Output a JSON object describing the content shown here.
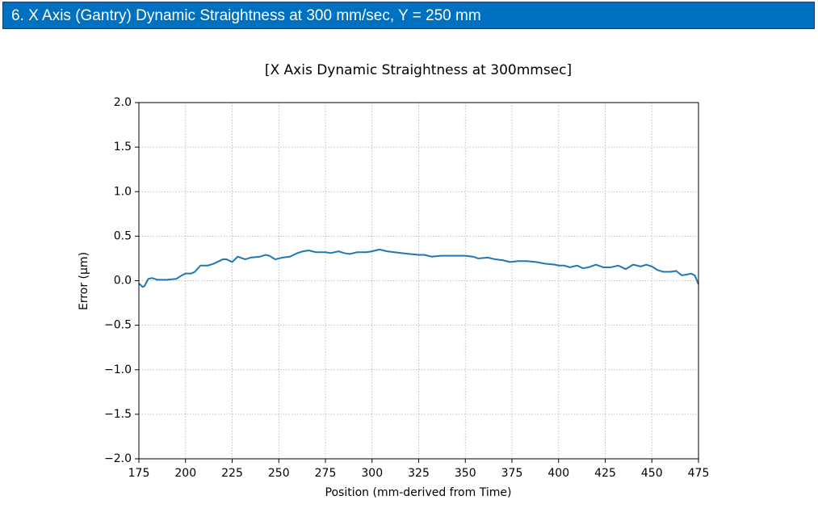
{
  "header": {
    "title": "6.   X Axis (Gantry) Dynamic Straightness at 300 mm/sec, Y = 250 mm"
  },
  "chart_data": {
    "type": "line",
    "title": "[X Axis Dynamic Straightness at 300mmsec]",
    "xlabel": "Position (mm-derived from Time)",
    "ylabel": "Error (µm)",
    "xlim": [
      175,
      475
    ],
    "ylim": [
      -2,
      2
    ],
    "xticks": [
      175,
      200,
      225,
      250,
      275,
      300,
      325,
      350,
      375,
      400,
      425,
      450,
      475
    ],
    "yticks": [
      {
        "value": -2,
        "label": "−2.0"
      },
      {
        "value": -1.5,
        "label": "−1.5"
      },
      {
        "value": -1,
        "label": "−1.0"
      },
      {
        "value": -0.5,
        "label": "−0.5"
      },
      {
        "value": 0,
        "label": "0.0"
      },
      0.5,
      {
        "value": 1,
        "label": "1.0"
      },
      1.5,
      {
        "value": 2,
        "label": "2.0"
      }
    ],
    "grid": true,
    "x": [
      175,
      177,
      178,
      180,
      182,
      185,
      190,
      195,
      198,
      200,
      203,
      205,
      208,
      212,
      215,
      220,
      222,
      225,
      228,
      232,
      235,
      240,
      243,
      245,
      248,
      252,
      256,
      260,
      263,
      266,
      270,
      275,
      278,
      282,
      285,
      288,
      292,
      297,
      300,
      304,
      308,
      312,
      316,
      320,
      325,
      328,
      332,
      337,
      345,
      350,
      354,
      357,
      362,
      366,
      370,
      374,
      378,
      383,
      388,
      393,
      398,
      400,
      403,
      406,
      410,
      413,
      416,
      420,
      424,
      428,
      432,
      436,
      440,
      444,
      447,
      450,
      453,
      456,
      460,
      463,
      466,
      469,
      471,
      473,
      475
    ],
    "series": [
      {
        "color": "#1f77b4",
        "values": [
          -0.03,
          -0.07,
          -0.06,
          0.02,
          0.03,
          0.01,
          0.01,
          0.02,
          0.06,
          0.08,
          0.08,
          0.1,
          0.17,
          0.17,
          0.19,
          0.24,
          0.24,
          0.21,
          0.27,
          0.24,
          0.26,
          0.27,
          0.29,
          0.28,
          0.24,
          0.26,
          0.27,
          0.31,
          0.33,
          0.34,
          0.32,
          0.32,
          0.31,
          0.33,
          0.31,
          0.3,
          0.32,
          0.32,
          0.33,
          0.35,
          0.33,
          0.32,
          0.31,
          0.3,
          0.29,
          0.29,
          0.27,
          0.28,
          0.28,
          0.28,
          0.27,
          0.25,
          0.26,
          0.24,
          0.23,
          0.21,
          0.22,
          0.22,
          0.21,
          0.19,
          0.18,
          0.17,
          0.17,
          0.15,
          0.17,
          0.14,
          0.15,
          0.18,
          0.15,
          0.15,
          0.17,
          0.13,
          0.18,
          0.16,
          0.18,
          0.16,
          0.12,
          0.1,
          0.1,
          0.11,
          0.06,
          0.07,
          0.08,
          0.06,
          -0.04
        ]
      }
    ]
  }
}
